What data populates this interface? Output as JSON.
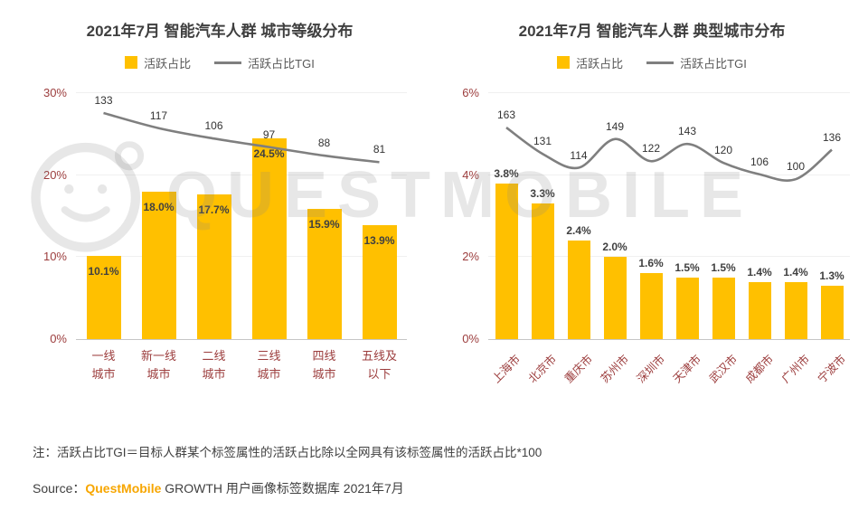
{
  "page": {
    "note": "注：活跃占比TGI＝目标人群某个标签属性的活跃占比除以全网具有该标签属性的活跃占比*100",
    "source": {
      "prefix": "Source：",
      "brand": "QuestMobile",
      "suffix": " GROWTH 用户画像标签数据库 2021年7月"
    },
    "watermark": "QUESTMOBILE"
  },
  "colors": {
    "bar": "#FFC000",
    "line": "#7F7F7F",
    "axis_text": "#9C3D3D",
    "label_text": "#404040",
    "brand_orange": "#F7A600"
  },
  "chart_data": [
    {
      "type": "bar+line",
      "title": "2021年7月 智能汽车人群 城市等级分布",
      "legend": [
        "活跃占比",
        "活跃占比TGI"
      ],
      "categories": [
        "一线城市",
        "新一线城市",
        "二线城市",
        "三线城市",
        "四线城市",
        "五线及以下"
      ],
      "categories_display": [
        [
          "一线",
          "城市"
        ],
        [
          "新一线",
          "城市"
        ],
        [
          "二线",
          "城市"
        ],
        [
          "三线",
          "城市"
        ],
        [
          "四线",
          "城市"
        ],
        [
          "五线及",
          "以下"
        ]
      ],
      "series": [
        {
          "name": "活跃占比",
          "type": "bar",
          "unit": "%",
          "values": [
            10.1,
            18.0,
            17.7,
            24.5,
            15.9,
            13.9
          ]
        },
        {
          "name": "活跃占比TGI",
          "type": "line",
          "values": [
            133,
            117,
            106,
            97,
            88,
            81
          ]
        }
      ],
      "ylim": [
        0,
        30
      ],
      "yticks": [
        0,
        10,
        20,
        30
      ],
      "layout": {
        "bar_label_position": "inside",
        "x_label_rotation": 0,
        "line_display_range": [
          -106,
          154
        ],
        "legend_position": "top",
        "grid": "faint"
      }
    },
    {
      "type": "bar+line",
      "title": "2021年7月 智能汽车人群 典型城市分布",
      "legend": [
        "活跃占比",
        "活跃占比TGI"
      ],
      "categories": [
        "上海市",
        "北京市",
        "重庆市",
        "苏州市",
        "深圳市",
        "天津市",
        "武汉市",
        "成都市",
        "广州市",
        "宁波市"
      ],
      "series": [
        {
          "name": "活跃占比",
          "type": "bar",
          "unit": "%",
          "values": [
            3.8,
            3.3,
            2.4,
            2.0,
            1.6,
            1.5,
            1.5,
            1.4,
            1.4,
            1.3
          ]
        },
        {
          "name": "活跃占比TGI",
          "type": "line",
          "values": [
            163,
            131,
            114,
            149,
            122,
            143,
            120,
            106,
            100,
            136
          ]
        }
      ],
      "ylim": [
        0,
        6
      ],
      "yticks": [
        0,
        2,
        4,
        6
      ],
      "layout": {
        "bar_label_position": "above",
        "x_label_rotation": -45,
        "line_display_range": [
          -95,
          205
        ],
        "legend_position": "top",
        "grid": "faint"
      }
    }
  ]
}
